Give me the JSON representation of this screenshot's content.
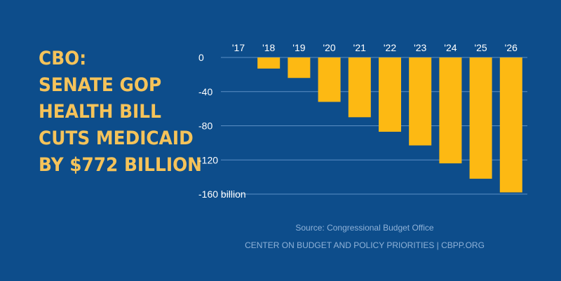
{
  "headline": {
    "lead": "CBO:",
    "lines": [
      "SENATE GOP",
      "HEALTH BILL",
      "CUTS MEDICAID",
      "BY $772 BILLION"
    ]
  },
  "colors": {
    "background": "#0d4d8b",
    "bar": "#fdb913",
    "lead_text": "#ffffff",
    "headline_text": "#f5c35a",
    "gridline": "#5c8fc4",
    "footer_text": "#8fb2d8"
  },
  "chart_data": {
    "type": "bar",
    "categories": [
      "'17",
      "'18",
      "'19",
      "'20",
      "'21",
      "'22",
      "'23",
      "'24",
      "'25",
      "'26"
    ],
    "values": [
      0,
      -13,
      -24,
      -52,
      -70,
      -87,
      -103,
      -124,
      -142,
      -158
    ],
    "yticks": [
      0,
      -40,
      -80,
      -120,
      -160
    ],
    "ytick_labels": [
      "0",
      "-40",
      "-80",
      "-120",
      "-160 billion"
    ],
    "ylim": [
      -160,
      0
    ],
    "grid": true,
    "xaxis_position": "top",
    "title": "",
    "xlabel": "",
    "ylabel": ""
  },
  "footer": {
    "source": "Source: Congressional Budget Office",
    "credit": "CENTER ON BUDGET AND POLICY PRIORITIES | CBPP.ORG"
  }
}
